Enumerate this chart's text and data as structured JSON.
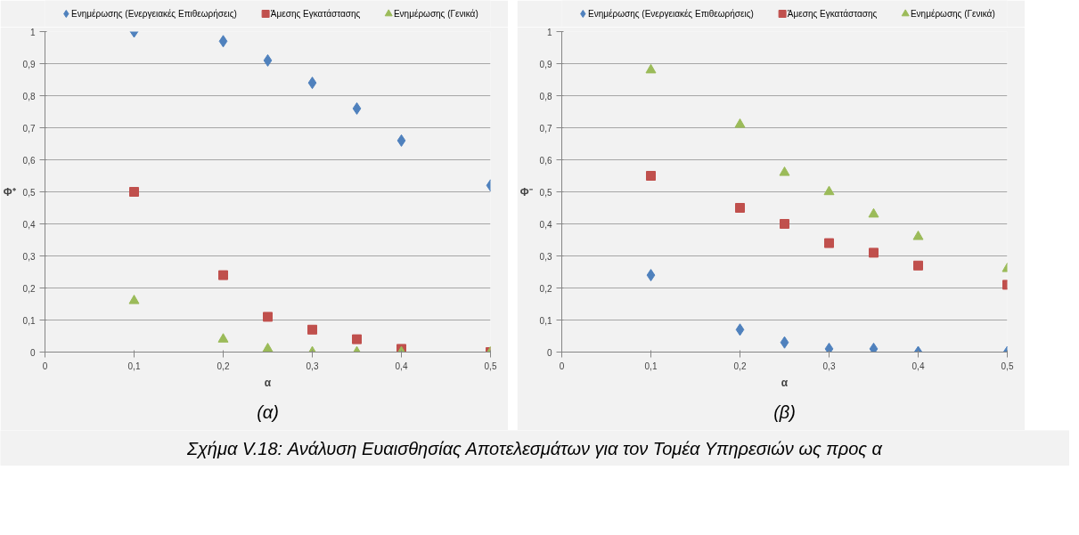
{
  "chart_data": [
    {
      "type": "scatter",
      "xlabel": "α",
      "ylabel": "Φ⁺",
      "x": [
        0.1,
        0.2,
        0.25,
        0.3,
        0.35,
        0.4,
        0.5
      ],
      "grid": "y",
      "legend": "top",
      "xlim": [
        0,
        0.5
      ],
      "xticks": [
        0,
        {
          "value": 0.1,
          "label": "0,1"
        },
        {
          "value": 0.2,
          "label": "0,2"
        },
        {
          "value": 0.3,
          "label": "0,3"
        },
        {
          "value": 0.4,
          "label": "0,4"
        },
        {
          "value": 0.5,
          "label": "0,5"
        }
      ],
      "ylim": [
        0,
        1
      ],
      "yticks": [
        0,
        {
          "value": 0.1,
          "label": "0,1"
        },
        {
          "value": 0.2,
          "label": "0,2"
        },
        {
          "value": 0.3,
          "label": "0,3"
        },
        {
          "value": 0.4,
          "label": "0,4"
        },
        {
          "value": 0.5,
          "label": "0,5"
        },
        {
          "value": 0.6,
          "label": "0,6"
        },
        {
          "value": 0.7,
          "label": "0,7"
        },
        {
          "value": 0.8,
          "label": "0,8"
        },
        {
          "value": 0.9,
          "label": "0,9"
        },
        1
      ],
      "series": [
        {
          "name": "Ενημέρωσης (Ενεργειακές Επιθεωρήσεις)",
          "color": "#4f81bd",
          "marker": "diamond",
          "values": [
            1,
            0.97,
            0.91,
            0.84,
            0.76,
            0.66,
            0.52
          ]
        },
        {
          "name": "Άμεσης Εγκατάστασης",
          "color": "#c0504d",
          "marker": "square",
          "values": [
            0.5,
            0.24,
            0.11,
            0.07,
            0.04,
            0.01,
            0
          ]
        },
        {
          "name": "Ενημέρωσης (Γενικά)",
          "color": "#9bbb59",
          "marker": "triangle",
          "values": [
            0.16,
            0.04,
            0.01,
            0,
            0,
            0,
            0
          ]
        }
      ],
      "annotations": [
        "(α)"
      ]
    },
    {
      "type": "scatter",
      "xlabel": "α",
      "ylabel": "Φ⁻",
      "x": [
        0.1,
        0.2,
        0.25,
        0.3,
        0.35,
        0.4,
        0.5
      ],
      "grid": "y",
      "legend": "top",
      "xlim": [
        0,
        0.5
      ],
      "xticks": [
        0,
        {
          "value": 0.1,
          "label": "0,1"
        },
        {
          "value": 0.2,
          "label": "0,2"
        },
        {
          "value": 0.3,
          "label": "0,3"
        },
        {
          "value": 0.4,
          "label": "0,4"
        },
        {
          "value": 0.5,
          "label": "0,5"
        }
      ],
      "ylim": [
        0,
        1
      ],
      "yticks": [
        0,
        {
          "value": 0.1,
          "label": "0,1"
        },
        {
          "value": 0.2,
          "label": "0,2"
        },
        {
          "value": 0.3,
          "label": "0,3"
        },
        {
          "value": 0.4,
          "label": "0,4"
        },
        {
          "value": 0.5,
          "label": "0,5"
        },
        {
          "value": 0.6,
          "label": "0,6"
        },
        {
          "value": 0.7,
          "label": "0,7"
        },
        {
          "value": 0.8,
          "label": "0,8"
        },
        {
          "value": 0.9,
          "label": "0,9"
        },
        1
      ],
      "series": [
        {
          "name": "Ενημέρωσης (Ενεργειακές Επιθεωρήσεις)",
          "color": "#4f81bd",
          "marker": "diamond",
          "values": [
            0.24,
            0.07,
            0.03,
            0.01,
            0.01,
            0,
            0
          ]
        },
        {
          "name": "Άμεσης Εγκατάστασης",
          "color": "#c0504d",
          "marker": "square",
          "values": [
            0.55,
            0.45,
            0.4,
            0.34,
            0.31,
            0.27,
            0.21
          ]
        },
        {
          "name": "Ενημέρωσης (Γενικά)",
          "color": "#9bbb59",
          "marker": "triangle",
          "values": [
            0.88,
            0.71,
            0.56,
            0.5,
            0.43,
            0.36,
            0.26
          ]
        }
      ],
      "annotations": [
        "(β)",
        "Σχήμα V.18: Ανάλυση Ευαισθησίας Αποτελεσμάτων για τον Τομέα Υπηρεσιών ως προς α"
      ]
    }
  ]
}
